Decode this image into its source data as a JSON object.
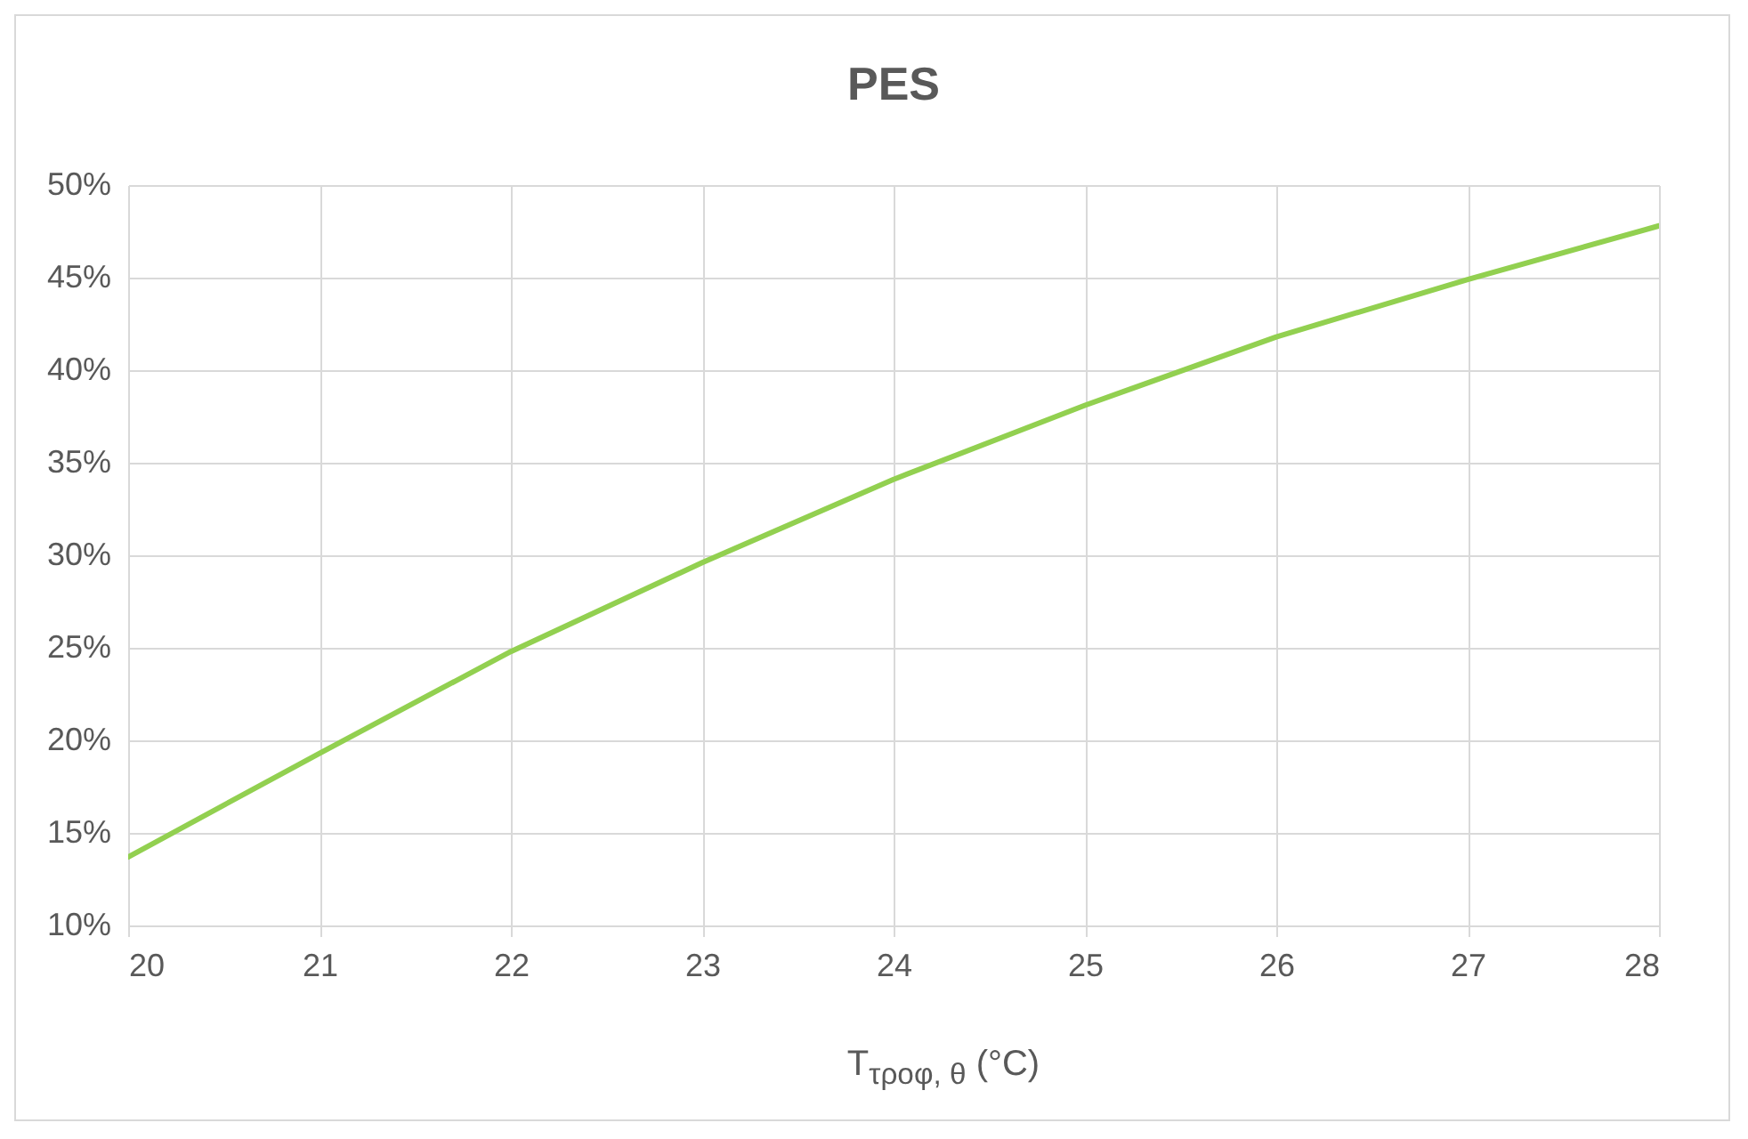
{
  "chart_data": {
    "type": "line",
    "title": "PES",
    "xlabel": "T$_{τροφ, θ}$ (°C)",
    "x": [
      20,
      21,
      22,
      23,
      24,
      25,
      26,
      27,
      28
    ],
    "series": [
      {
        "color": "#92d050",
        "values": [
          13.7,
          19.3,
          24.8,
          29.6,
          34.1,
          38.1,
          41.8,
          44.9,
          47.8
        ]
      }
    ],
    "xlim": [
      20,
      28
    ],
    "xticks": [
      20,
      21,
      22,
      23,
      24,
      25,
      26,
      27,
      28
    ],
    "ylim": [
      10,
      50
    ],
    "yticks": [
      {
        "value": 10,
        "label": "10%"
      },
      {
        "value": 15,
        "label": "15%"
      },
      {
        "value": 20,
        "label": "20%"
      },
      {
        "value": 25,
        "label": "25%"
      },
      {
        "value": 30,
        "label": "30%"
      },
      {
        "value": 35,
        "label": "35%"
      },
      {
        "value": 40,
        "label": "40%"
      },
      {
        "value": 45,
        "label": "45%"
      },
      {
        "value": 50,
        "label": "50%"
      }
    ],
    "grid": true,
    "line_style": "solid"
  }
}
